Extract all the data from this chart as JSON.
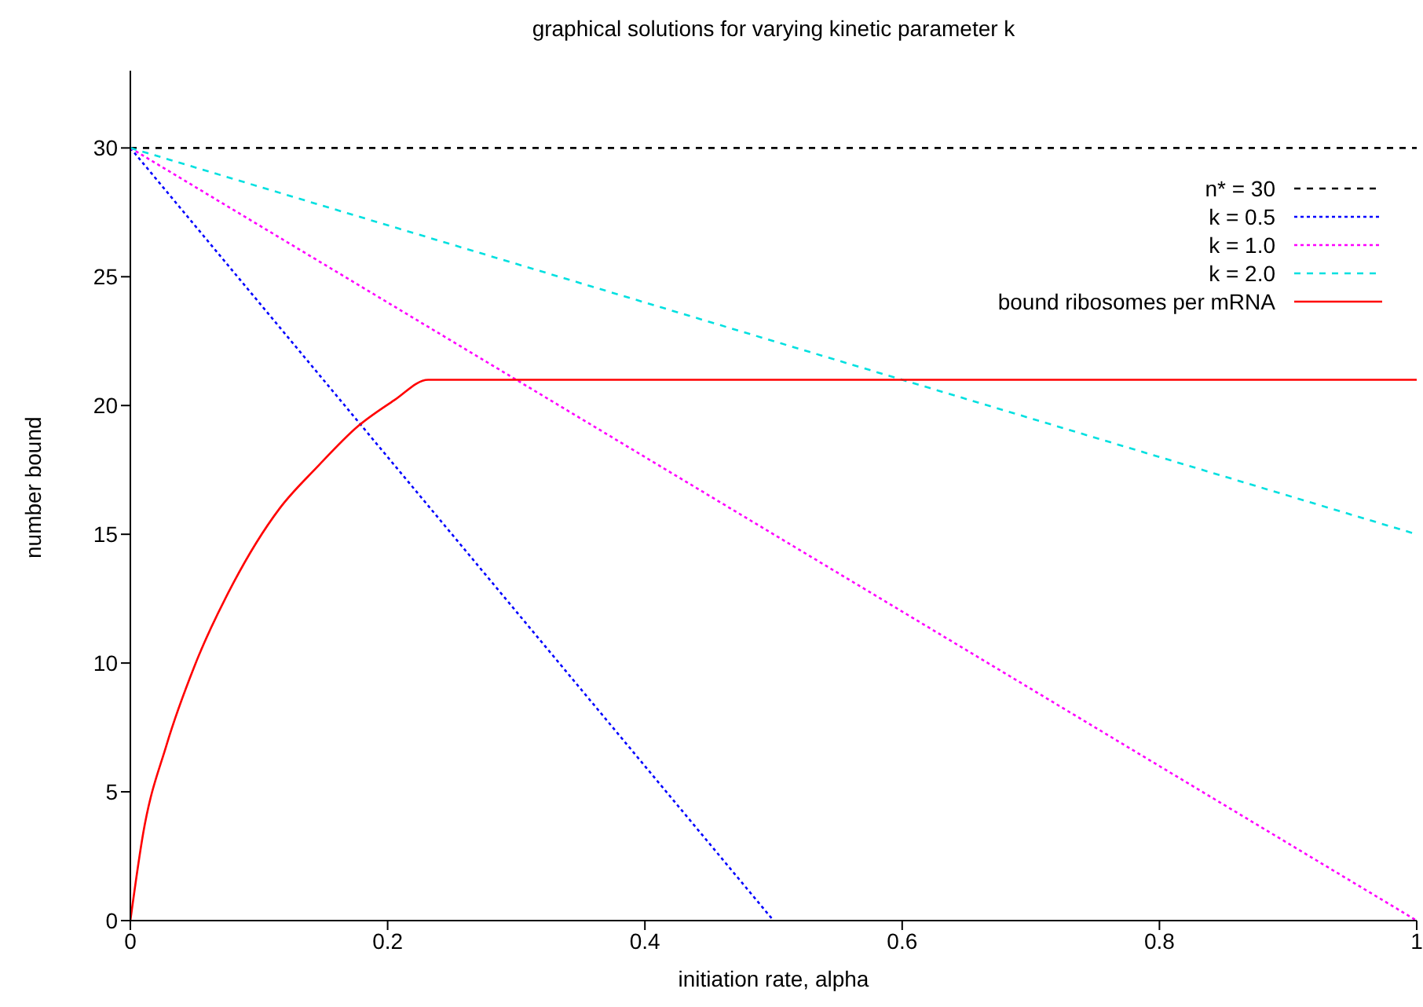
{
  "chart_data": {
    "type": "line",
    "title": "graphical solutions for varying kinetic parameter k",
    "xlabel": "initiation rate, alpha",
    "ylabel": "number bound",
    "xlim": [
      0,
      1
    ],
    "xticks": [
      0,
      0.2,
      0.4,
      0.6,
      0.8,
      1
    ],
    "ylim": [
      0,
      33
    ],
    "yticks": [
      0,
      5,
      10,
      15,
      20,
      25,
      30
    ],
    "legend": "top right",
    "marker": "none",
    "series": [
      {
        "name": "n* = 30",
        "color": "#000000",
        "line_style": "dashed",
        "x": [
          0,
          1
        ],
        "values": [
          30,
          30
        ]
      },
      {
        "name": "k = 0.5",
        "color": "#0000ff",
        "line_style": "dotted",
        "x": [
          0,
          0.5
        ],
        "values": [
          30,
          0
        ]
      },
      {
        "name": "k = 1.0",
        "color": "#ff00ff",
        "line_style": "dotted",
        "x": [
          0,
          1
        ],
        "values": [
          30,
          0
        ]
      },
      {
        "name": "k = 2.0",
        "color": "#00e0e0",
        "line_style": "dashed",
        "x": [
          0,
          1
        ],
        "values": [
          30,
          15
        ]
      },
      {
        "name": "bound ribosomes per mRNA",
        "color": "#ff0000",
        "line_style": "solid",
        "x": [
          0,
          0.01,
          0.028,
          0.05,
          0.08,
          0.116,
          0.145,
          0.177,
          0.205,
          0.2315,
          1
        ],
        "values": [
          0,
          3.4,
          6.8,
          9.9,
          13.1,
          16.0,
          17.6,
          19.2,
          20.2,
          21,
          21
        ]
      }
    ]
  }
}
